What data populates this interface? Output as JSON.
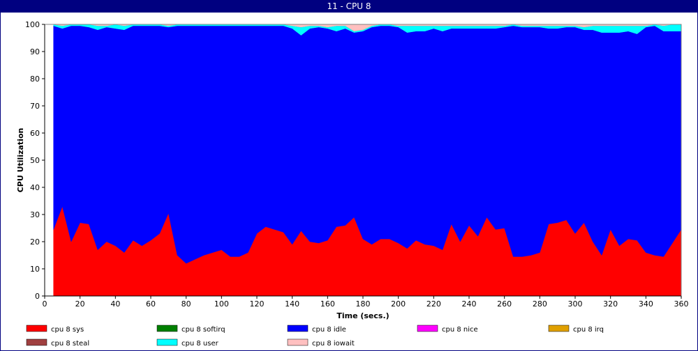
{
  "window": {
    "title": "11 - CPU 8"
  },
  "chart_data": {
    "type": "area",
    "stacked": true,
    "title": "11 - CPU 8",
    "xlabel": "Time (secs.)",
    "ylabel": "CPU Utilization",
    "xlim": [
      0,
      360
    ],
    "ylim": [
      0,
      100
    ],
    "x_ticks": [
      0,
      20,
      40,
      60,
      80,
      100,
      120,
      140,
      160,
      180,
      200,
      220,
      240,
      260,
      280,
      300,
      320,
      340,
      360
    ],
    "y_ticks": [
      0,
      10,
      20,
      30,
      40,
      50,
      60,
      70,
      80,
      90,
      100
    ],
    "grid": false,
    "legend_position": "bottom",
    "legend": [
      {
        "name": "cpu 8 sys",
        "color": "#ff0000"
      },
      {
        "name": "cpu 8 softirq",
        "color": "#008000"
      },
      {
        "name": "cpu 8 idle",
        "color": "#0000ff"
      },
      {
        "name": "cpu 8 nice",
        "color": "#ff00ff"
      },
      {
        "name": "cpu 8 irq",
        "color": "#e0a000"
      },
      {
        "name": "cpu 8 steal",
        "color": "#a04040"
      },
      {
        "name": "cpu 8 user",
        "color": "#00ffff"
      },
      {
        "name": "cpu 8 iowait",
        "color": "#ffc0c0"
      }
    ],
    "x": [
      5,
      10,
      15,
      20,
      25,
      30,
      35,
      40,
      45,
      50,
      55,
      60,
      65,
      70,
      75,
      80,
      85,
      90,
      95,
      100,
      105,
      110,
      115,
      120,
      125,
      130,
      135,
      140,
      145,
      150,
      155,
      160,
      165,
      170,
      175,
      180,
      185,
      190,
      195,
      200,
      205,
      210,
      215,
      220,
      225,
      230,
      235,
      240,
      245,
      250,
      255,
      260,
      265,
      270,
      275,
      280,
      285,
      290,
      295,
      300,
      305,
      310,
      315,
      320,
      325,
      330,
      335,
      340,
      345,
      350,
      355,
      360
    ],
    "series": [
      {
        "name": "cpu 8 sys",
        "color": "#ff0000",
        "values": [
          24.5,
          33,
          20,
          27,
          26.5,
          17,
          20,
          18.5,
          16,
          20.5,
          18.5,
          20.5,
          23,
          30.5,
          15,
          12,
          13.5,
          15,
          16,
          17,
          14.5,
          14.5,
          16,
          23,
          25.5,
          24.5,
          23.5,
          19,
          24,
          20,
          19.5,
          20.5,
          25.5,
          26,
          29,
          21,
          19,
          21,
          21,
          19.5,
          17.5,
          20.5,
          19,
          18.5,
          17,
          26.5,
          20,
          26,
          22,
          29,
          24.5,
          25,
          14.5,
          14.5,
          15,
          16,
          26.5,
          27,
          28,
          23,
          27,
          20,
          15,
          24.5,
          18.5,
          21,
          20.5,
          16,
          15,
          14.5,
          19.5,
          24.5
        ]
      },
      {
        "name": "cpu 8 softirq",
        "color": "#008000",
        "values": [
          0,
          0,
          0,
          0,
          0,
          0,
          0,
          0,
          0,
          0,
          0,
          0,
          0,
          0,
          0,
          0,
          0,
          0,
          0,
          0,
          0,
          0,
          0,
          0,
          0,
          0,
          0,
          0,
          0,
          0,
          0,
          0,
          0,
          0,
          0,
          0,
          0,
          0,
          0,
          0,
          0,
          0,
          0,
          0,
          0,
          0,
          0,
          0,
          0,
          0,
          0,
          0,
          0,
          0,
          0,
          0,
          0,
          0,
          0,
          0,
          0,
          0,
          0,
          0,
          0,
          0,
          0,
          0,
          0,
          0,
          0,
          0
        ]
      },
      {
        "name": "cpu 8 idle",
        "color": "#0000ff",
        "values": [
          75,
          65.5,
          79.5,
          72.5,
          72.5,
          81,
          79,
          80,
          82,
          79,
          81,
          79,
          76.5,
          68.5,
          84.5,
          87.5,
          86,
          84.5,
          83.5,
          82.5,
          85,
          85,
          83.5,
          76.5,
          74,
          75,
          76,
          79.5,
          72,
          78.5,
          79.5,
          78,
          72,
          72.5,
          68,
          76.5,
          80,
          78.5,
          78.5,
          79.5,
          79.5,
          77,
          78.5,
          80,
          80.5,
          72,
          78.5,
          72.5,
          76.5,
          69.5,
          74,
          74,
          85,
          84.5,
          84,
          83,
          72,
          71.5,
          71,
          76,
          71,
          78,
          82,
          72.5,
          78.5,
          76.5,
          76,
          83,
          84.5,
          83,
          78,
          73
        ]
      },
      {
        "name": "cpu 8 nice",
        "color": "#ff00ff",
        "values": [
          0,
          0,
          0,
          0,
          0,
          0,
          0,
          0,
          0,
          0,
          0,
          0,
          0,
          0,
          0,
          0,
          0,
          0,
          0,
          0,
          0,
          0,
          0,
          0,
          0,
          0,
          0,
          0,
          0,
          0,
          0,
          0,
          0,
          0,
          0,
          0,
          0,
          0,
          0,
          0,
          0,
          0,
          0,
          0,
          0,
          0,
          0,
          0,
          0,
          0,
          0,
          0,
          0,
          0,
          0,
          0,
          0,
          0,
          0,
          0,
          0,
          0,
          0,
          0,
          0,
          0,
          0,
          0,
          0,
          0,
          0,
          0
        ]
      },
      {
        "name": "cpu 8 irq",
        "color": "#e0a000",
        "values": [
          0,
          0,
          0,
          0,
          0,
          0,
          0,
          0,
          0,
          0,
          0,
          0,
          0,
          0,
          0,
          0,
          0,
          0,
          0,
          0,
          0,
          0,
          0,
          0,
          0,
          0,
          0,
          0,
          0,
          0,
          0,
          0,
          0,
          0,
          0,
          0,
          0,
          0,
          0,
          0,
          0,
          0,
          0,
          0,
          0,
          0,
          0,
          0,
          0,
          0,
          0,
          0,
          0,
          0,
          0,
          0,
          0,
          0,
          0,
          0,
          0,
          0,
          0,
          0,
          0,
          0,
          0,
          0,
          0,
          0,
          0,
          0
        ]
      },
      {
        "name": "cpu 8 steal",
        "color": "#a04040",
        "values": [
          0,
          0,
          0,
          0,
          0,
          0,
          0,
          0,
          0,
          0,
          0,
          0,
          0,
          0,
          0,
          0,
          0,
          0,
          0,
          0,
          0,
          0,
          0,
          0,
          0,
          0,
          0,
          0,
          0,
          0,
          0,
          0,
          0,
          0,
          0,
          0,
          0,
          0,
          0,
          0,
          0,
          0,
          0,
          0,
          0,
          0,
          0,
          0,
          0,
          0,
          0,
          0,
          0,
          0,
          0,
          0,
          0,
          0,
          0,
          0,
          0,
          0,
          0,
          0,
          0,
          0,
          0,
          0,
          0,
          0,
          0,
          0
        ]
      },
      {
        "name": "cpu 8 user",
        "color": "#00ffff",
        "values": [
          0.5,
          1,
          0.5,
          0.5,
          1,
          1.5,
          0.5,
          1.5,
          1.5,
          0.5,
          0.5,
          0.5,
          0.5,
          0.5,
          0.5,
          0.5,
          0.5,
          0.5,
          0.5,
          0.5,
          0.5,
          0.5,
          0.5,
          0.5,
          0.5,
          0.5,
          0.5,
          1,
          3,
          1,
          0.5,
          0.5,
          2,
          1,
          0.5,
          0.5,
          0.5,
          0.5,
          0.5,
          0.5,
          2.5,
          2,
          2,
          1,
          2,
          1,
          1,
          1,
          1,
          1,
          1,
          0.5,
          0.5,
          0.5,
          0.5,
          0.5,
          1,
          1,
          0.5,
          0.5,
          1,
          1.5,
          2.5,
          2.5,
          2.5,
          2,
          3,
          0.5,
          0.5,
          2,
          2.5,
          2.5
        ]
      },
      {
        "name": "cpu 8 iowait",
        "color": "#ffc0c0",
        "values": [
          0,
          0.5,
          0,
          0,
          0,
          0.5,
          0.5,
          0,
          0.5,
          0,
          0,
          0,
          0,
          0.5,
          0,
          0,
          0,
          0,
          0,
          0,
          0,
          0,
          0,
          0,
          0,
          0,
          0,
          0.5,
          1,
          0.5,
          0.5,
          1,
          0.5,
          0.5,
          2.5,
          2,
          0.5,
          0,
          0,
          0.5,
          0.5,
          0.5,
          0.5,
          0.5,
          0.5,
          0.5,
          0.5,
          0.5,
          0.5,
          0.5,
          0.5,
          0.5,
          0,
          0.5,
          0.5,
          0.5,
          0.5,
          0.5,
          0.5,
          0.5,
          1,
          0.5,
          0.5,
          0.5,
          0.5,
          0.5,
          0.5,
          0.5,
          0,
          0.5,
          0,
          0
        ]
      }
    ]
  }
}
